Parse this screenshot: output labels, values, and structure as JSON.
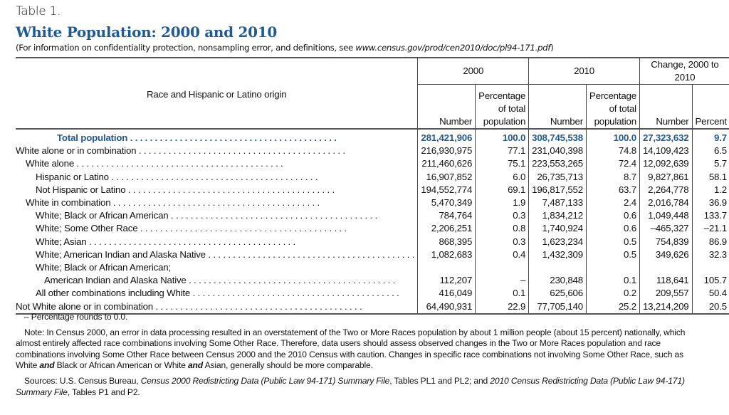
{
  "table_label": "Table 1.",
  "title": "White Population: 2000 and 2010",
  "subtitle_prefix": "(For information on confidentiality protection, nonsampling error, and definitions, see ",
  "subtitle_url": "www.census.gov/prod/cen2010/doc/pl94-171.pdf",
  "subtitle_suffix": ")",
  "header": {
    "row_label": "Race and Hispanic or Latino origin",
    "groups": [
      "2000",
      "2010",
      "Change, 2000 to 2010"
    ],
    "cols": [
      "Number",
      "Percentage of total population",
      "Number",
      "Percentage of total population",
      "Number",
      "Percent"
    ]
  },
  "rows": [
    {
      "label": "Total population",
      "indent": 0,
      "total": true,
      "values": [
        "281,421,906",
        "100.0",
        "308,745,538",
        "100.0",
        "27,323,632",
        "9.7"
      ]
    },
    {
      "label": "White alone or in combination",
      "indent": 0,
      "values": [
        "216,930,975",
        "77.1",
        "231,040,398",
        "74.8",
        "14,109,423",
        "6.5"
      ]
    },
    {
      "label": "White alone",
      "indent": 1,
      "values": [
        "211,460,626",
        "75.1",
        "223,553,265",
        "72.4",
        "12,092,639",
        "5.7"
      ]
    },
    {
      "label": "Hispanic or Latino",
      "indent": 2,
      "values": [
        "16,907,852",
        "6.0",
        "26,735,713",
        "8.7",
        "9,827,861",
        "58.1"
      ]
    },
    {
      "label": "Not Hispanic or Latino",
      "indent": 2,
      "values": [
        "194,552,774",
        "69.1",
        "196,817,552",
        "63.7",
        "2,264,778",
        "1.2"
      ]
    },
    {
      "label": "White in combination",
      "indent": 1,
      "values": [
        "5,470,349",
        "1.9",
        "7,487,133",
        "2.4",
        "2,016,784",
        "36.9"
      ]
    },
    {
      "label": "White; Black or African American",
      "indent": 2,
      "values": [
        "784,764",
        "0.3",
        "1,834,212",
        "0.6",
        "1,049,448",
        "133.7"
      ]
    },
    {
      "label": "White; Some Other Race",
      "indent": 2,
      "values": [
        "2,206,251",
        "0.8",
        "1,740,924",
        "0.6",
        "–465,327",
        "–21.1"
      ]
    },
    {
      "label": "White; Asian",
      "indent": 2,
      "values": [
        "868,395",
        "0.3",
        "1,623,234",
        "0.5",
        "754,839",
        "86.9"
      ]
    },
    {
      "label": "White; American Indian and Alaska Native",
      "indent": 2,
      "values": [
        "1,082,683",
        "0.4",
        "1,432,309",
        "0.5",
        "349,626",
        "32.3"
      ]
    },
    {
      "label": "White; Black or African American;",
      "indent": 2,
      "nodots": true,
      "values": [
        "",
        "",
        "",
        "",
        "",
        ""
      ]
    },
    {
      "label": "American Indian and Alaska Native",
      "indent": 3,
      "values": [
        "112,207",
        "–",
        "230,848",
        "0.1",
        "118,641",
        "105.7"
      ]
    },
    {
      "label": "All other combinations including White",
      "indent": 2,
      "values": [
        "416,049",
        "0.1",
        "625,606",
        "0.2",
        "209,557",
        "50.4"
      ]
    },
    {
      "label": "Not White alone or in combination",
      "indent": 0,
      "values": [
        "64,490,931",
        "22.9",
        "77,705,140",
        "25.2",
        "13,214,209",
        "20.5"
      ]
    }
  ],
  "notes": {
    "dash_note": "– Percentage rounds to 0.0.",
    "note": "Note: In Census 2000, an error in data processing resulted in an overstatement of the Two or More Races population by about 1 million people (about 15 percent) nationally, which almost entirely affected race combinations involving Some Other Race. Therefore, data users should assess observed changes in the Two or More Races population and race combinations involving Some Other Race between Census 2000 and the 2010 Census with caution. Changes in specific race combinations not involving Some Other Race, such as White",
    "note_and1": "and",
    "note_mid": "Black or African American or White",
    "note_and2": "and",
    "note_end": "Asian, generally should be more comparable.",
    "sources_prefix": "Sources: U.S. Census Bureau, ",
    "sources_title1": "Census 2000 Redistricting Data (Public Law 94-171) Summary File",
    "sources_mid": ", Tables PL1 and PL2; and ",
    "sources_title2": "2010 Census Redistricting Data (Public Law 94-171) Summary File",
    "sources_end": ", Tables P1 and P2."
  }
}
